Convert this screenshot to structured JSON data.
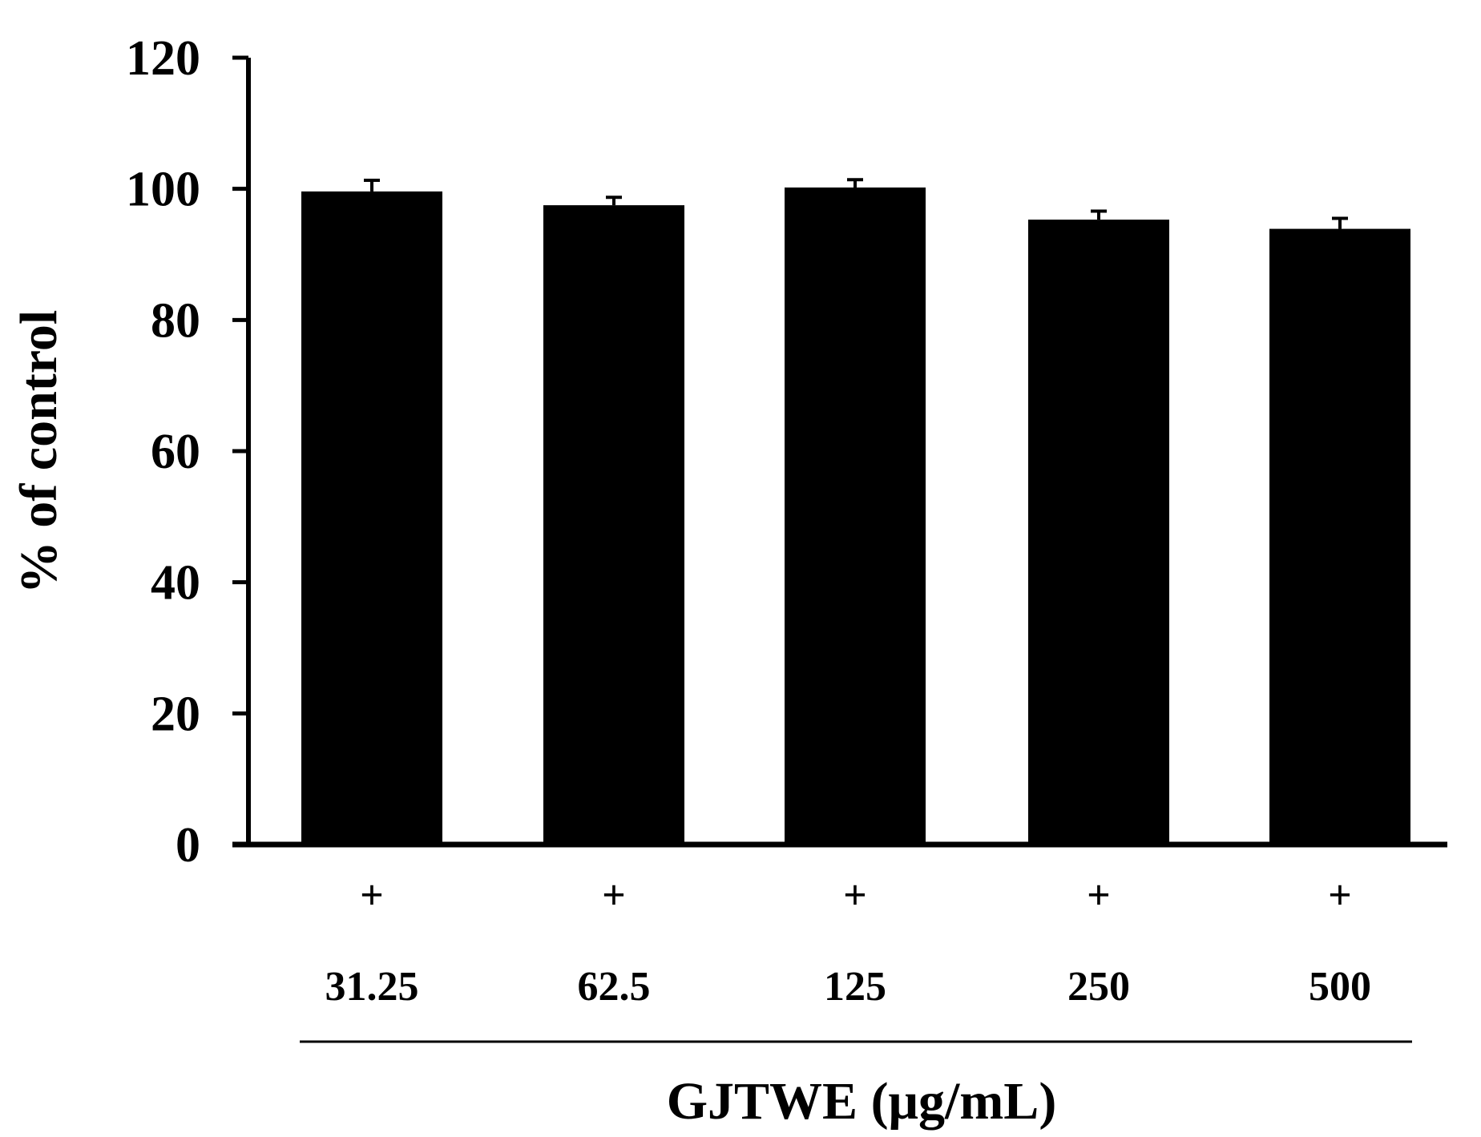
{
  "chart_data": {
    "type": "bar",
    "title": "",
    "categories": [
      "31.25",
      "62.5",
      "125",
      "250",
      "500"
    ],
    "treatment_row": [
      "+",
      "+",
      "+",
      "+",
      "+"
    ],
    "values": [
      99.6,
      97.5,
      100.2,
      95.3,
      93.9
    ],
    "errors": [
      1.7,
      1.2,
      1.2,
      1.3,
      1.6
    ],
    "ylabel": "% of control",
    "xlabel": "GJTWE (μg/mL)",
    "ylim": [
      0,
      120
    ],
    "yticks": [
      "0",
      "20",
      "40",
      "60",
      "80",
      "100",
      "120"
    ],
    "grid": false,
    "bar_color": "#000000"
  }
}
